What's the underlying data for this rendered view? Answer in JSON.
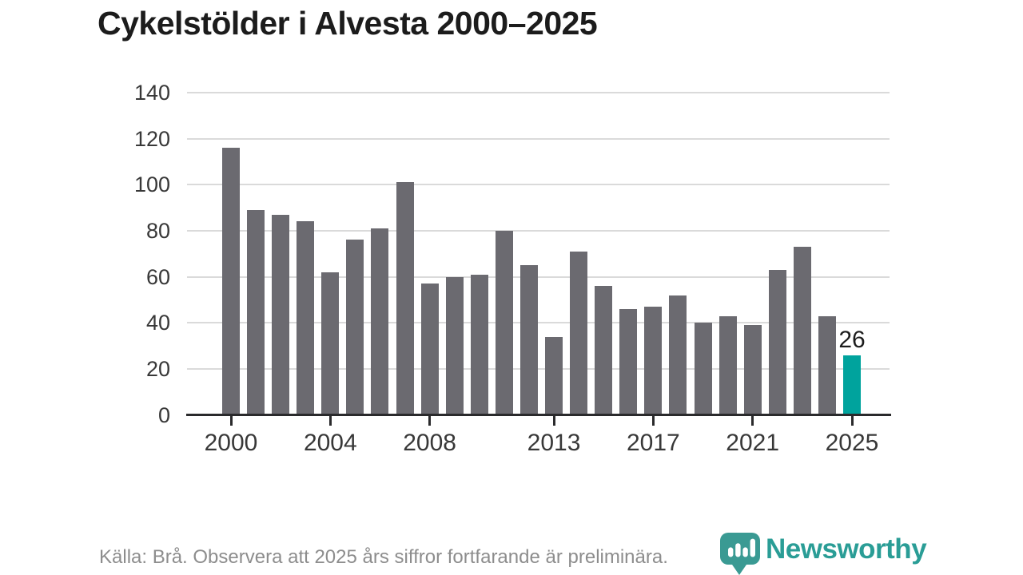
{
  "title": "Cykelstölder i Alvesta 2000–2025",
  "footer": {
    "source_note": "Källa: Brå. Observera att 2025 års siffror fortfarande är preliminära."
  },
  "logo": {
    "wordmark": "Newsworthy",
    "icon": "bar-chart-pin-icon"
  },
  "colors": {
    "bar": "#6b6a70",
    "highlight_bar": "#00a39d",
    "gridline": "#dadada",
    "axis": "#2a2a2c",
    "tick_label": "#383838",
    "title": "#1c1c1c",
    "value_label": "#1c1c1c",
    "footer_text": "#8d8d8d",
    "logo_badge": "#3a9a93",
    "logo_wordmark": "#2a9d96"
  },
  "chart_data": {
    "type": "bar",
    "title": "Cykelstölder i Alvesta 2000–2025",
    "x": [
      2000,
      2001,
      2002,
      2003,
      2004,
      2005,
      2006,
      2007,
      2008,
      2009,
      2010,
      2011,
      2012,
      2013,
      2014,
      2015,
      2016,
      2017,
      2018,
      2019,
      2020,
      2021,
      2022,
      2023,
      2024,
      2025
    ],
    "values": [
      116,
      89,
      87,
      84,
      62,
      76,
      81,
      101,
      57,
      60,
      61,
      80,
      65,
      34,
      71,
      56,
      46,
      47,
      52,
      40,
      43,
      39,
      63,
      73,
      43,
      26
    ],
    "highlight_x": 2025,
    "value_label": {
      "x": 2025,
      "text": "26"
    },
    "yticks": [
      0,
      20,
      40,
      60,
      80,
      100,
      120,
      140
    ],
    "xticks": [
      2000,
      2004,
      2008,
      2013,
      2017,
      2021,
      2025
    ],
    "ylim": [
      0,
      140
    ],
    "grid": "horizontal",
    "legend": "none"
  }
}
